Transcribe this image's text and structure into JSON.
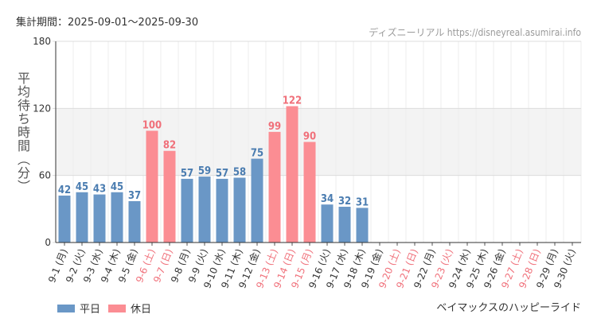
{
  "header": {
    "period": "集計期間：2025-09-01～2025-09-30",
    "site": "ディズニーリアル https://disneyreal.asumirai.info"
  },
  "footer": {
    "ride_name": "ベイマックスのハッピーライド"
  },
  "colors": {
    "weekday": "#6a97c6",
    "holiday": "#fb8d93",
    "weekday_label": "#4a7cb0",
    "holiday_label": "#f0707a"
  },
  "chart_data": {
    "type": "bar",
    "ylabel": "平均待ち時間（分）",
    "ylim": [
      0,
      180
    ],
    "yticks": [
      0,
      60,
      120,
      180
    ],
    "highlight_band": [
      60,
      120
    ],
    "grid": true,
    "legend": {
      "position": "bottom-left",
      "entries": [
        {
          "key": "weekday",
          "label": "平日"
        },
        {
          "key": "holiday",
          "label": "休日"
        }
      ]
    },
    "categories": [
      "9-1 (月)",
      "9-2 (火)",
      "9-3 (水)",
      "9-4 (木)",
      "9-5 (金)",
      "9-6 (土)",
      "9-7 (日)",
      "9-8 (月)",
      "9-9 (火)",
      "9-10 (水)",
      "9-11 (木)",
      "9-12 (金)",
      "9-13 (土)",
      "9-14 (日)",
      "9-15 (月)",
      "9-16 (火)",
      "9-17 (水)",
      "9-18 (木)",
      "9-19 (金)",
      "9-20 (土)",
      "9-21 (日)",
      "9-22 (月)",
      "9-23 (火)",
      "9-24 (水)",
      "9-25 (木)",
      "9-26 (金)",
      "9-27 (土)",
      "9-28 (日)",
      "9-29 (月)",
      "9-30 (火)"
    ],
    "values": [
      42,
      45,
      43,
      45,
      37,
      100,
      82,
      57,
      59,
      57,
      58,
      75,
      99,
      122,
      90,
      34,
      32,
      31,
      null,
      null,
      null,
      null,
      null,
      null,
      null,
      null,
      null,
      null,
      null,
      null
    ],
    "day_type": [
      "weekday",
      "weekday",
      "weekday",
      "weekday",
      "weekday",
      "holiday",
      "holiday",
      "weekday",
      "weekday",
      "weekday",
      "weekday",
      "weekday",
      "holiday",
      "holiday",
      "holiday",
      "weekday",
      "weekday",
      "weekday",
      "weekday",
      "holiday",
      "holiday",
      "weekday",
      "holiday",
      "weekday",
      "weekday",
      "weekday",
      "holiday",
      "holiday",
      "weekday",
      "weekday"
    ]
  }
}
